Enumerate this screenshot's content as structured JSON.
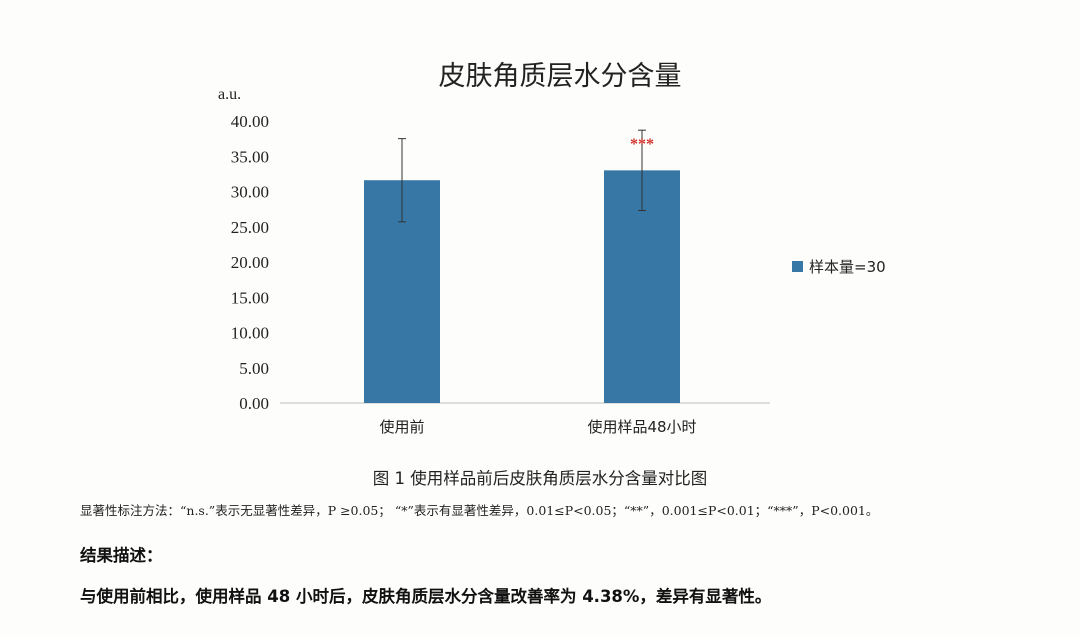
{
  "chart_data": {
    "type": "bar",
    "title": "皮肤角质层水分含量",
    "ylabel": "a.u.",
    "xlabel": "",
    "categories": [
      "使用前",
      "使用样品48小时"
    ],
    "series": [
      {
        "name": "样本量=30",
        "values": [
          31.6,
          33.0
        ],
        "error": [
          5.9,
          5.7
        ],
        "color": "#3777a5"
      }
    ],
    "significance": [
      "",
      "***"
    ],
    "ylim": [
      0,
      40
    ],
    "yticks": [
      "0.00",
      "5.00",
      "10.00",
      "15.00",
      "20.00",
      "25.00",
      "30.00",
      "35.00",
      "40.00"
    ],
    "legend_position": "right",
    "grid": false
  },
  "caption": "图 1  使用样品前后皮肤角质层水分含量对比图",
  "note": "显著性标注方法：“n.s.”表示无显著性差异，P ≥0.05；  “*”表示有显著性差异，0.01≤P<0.05；“**”，0.001≤P<0.01；“***”，P<0.001。",
  "result_heading": "结果描述：",
  "result_text": "与使用前相比，使用样品 48 小时后，皮肤角质层水分含量改善率为 4.38%，差异有显著性。"
}
